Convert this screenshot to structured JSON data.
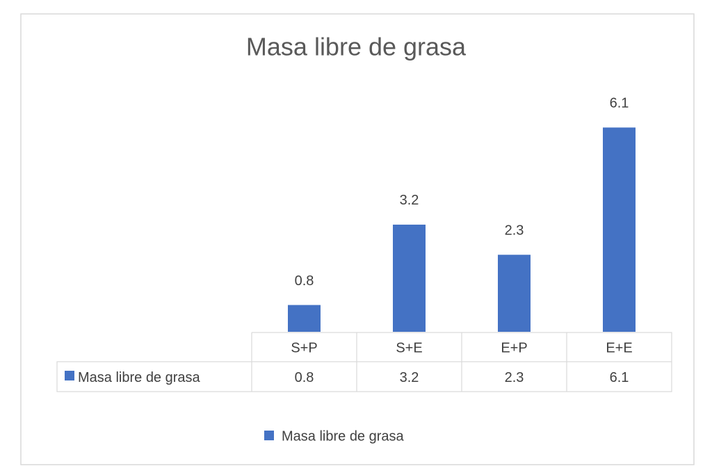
{
  "chart_data": {
    "type": "bar",
    "title": "Masa libre de grasa",
    "categories": [
      "S+P",
      "S+E",
      "E+P",
      "E+E"
    ],
    "series": [
      {
        "name": "Masa libre de grasa",
        "color": "#4472c4",
        "values": [
          0.8,
          3.2,
          2.3,
          6.1
        ]
      }
    ],
    "ylim": [
      0,
      7
    ],
    "data_table": true,
    "data_labels": true,
    "legend": "bottom"
  }
}
